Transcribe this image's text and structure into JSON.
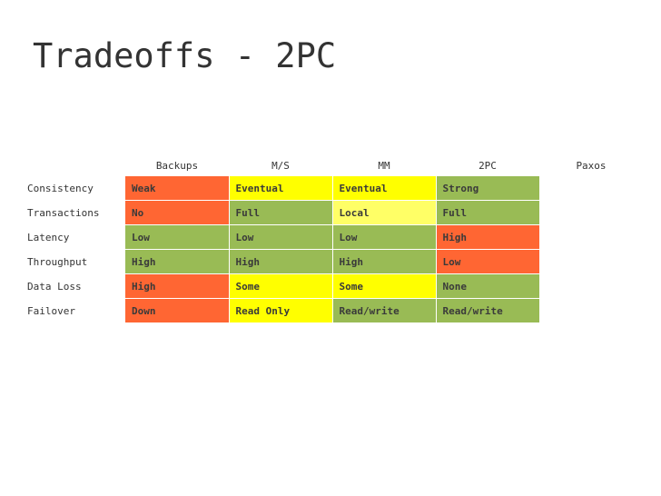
{
  "slide": {
    "title": "Tradeoffs - 2PC"
  },
  "colors": {
    "red": "#ff6633",
    "green": "#99bb55",
    "yellow": "#ffff00",
    "light_yellow": "#ffff66",
    "white": "#ffffff"
  },
  "table": {
    "columns": [
      "Backups",
      "M/S",
      "MM",
      "2PC",
      "Paxos"
    ],
    "rows": [
      {
        "label": "Consistency",
        "cells": [
          {
            "text": "Weak",
            "color": "#ff6633"
          },
          {
            "text": "Eventual",
            "color": "#ffff00"
          },
          {
            "text": "Eventual",
            "color": "#ffff00"
          },
          {
            "text": "Strong",
            "color": "#99bb55"
          },
          {
            "text": "",
            "color": "#ffffff"
          }
        ]
      },
      {
        "label": "Transactions",
        "cells": [
          {
            "text": "No",
            "color": "#ff6633"
          },
          {
            "text": "Full",
            "color": "#99bb55"
          },
          {
            "text": "Local",
            "color": "#ffff66"
          },
          {
            "text": "Full",
            "color": "#99bb55"
          },
          {
            "text": "",
            "color": "#ffffff"
          }
        ]
      },
      {
        "label": "Latency",
        "cells": [
          {
            "text": "Low",
            "color": "#99bb55"
          },
          {
            "text": "Low",
            "color": "#99bb55"
          },
          {
            "text": "Low",
            "color": "#99bb55"
          },
          {
            "text": "High",
            "color": "#ff6633"
          },
          {
            "text": "",
            "color": "#ffffff"
          }
        ]
      },
      {
        "label": "Throughput",
        "cells": [
          {
            "text": "High",
            "color": "#99bb55"
          },
          {
            "text": "High",
            "color": "#99bb55"
          },
          {
            "text": "High",
            "color": "#99bb55"
          },
          {
            "text": "Low",
            "color": "#ff6633"
          },
          {
            "text": "",
            "color": "#ffffff"
          }
        ]
      },
      {
        "label": "Data Loss",
        "cells": [
          {
            "text": "High",
            "color": "#ff6633"
          },
          {
            "text": "Some",
            "color": "#ffff00"
          },
          {
            "text": "Some",
            "color": "#ffff00"
          },
          {
            "text": "None",
            "color": "#99bb55"
          },
          {
            "text": "",
            "color": "#ffffff"
          }
        ]
      },
      {
        "label": "Failover",
        "cells": [
          {
            "text": "Down",
            "color": "#ff6633"
          },
          {
            "text": "Read Only",
            "color": "#ffff00"
          },
          {
            "text": "Read/write",
            "color": "#99bb55"
          },
          {
            "text": "Read/write",
            "color": "#99bb55"
          },
          {
            "text": "",
            "color": "#ffffff"
          }
        ]
      }
    ]
  }
}
